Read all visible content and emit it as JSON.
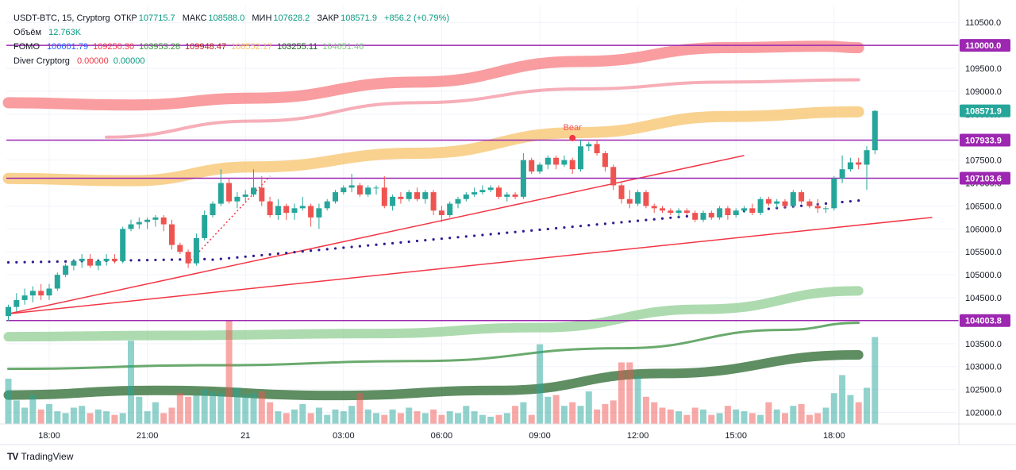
{
  "header": {
    "symbol": "USDT-BTC, 15, Cryptorg",
    "open_label": "ОТКР",
    "open_value": "107715.7",
    "high_label": "МАКС",
    "high_value": "108588.0",
    "low_label": "МИН",
    "low_value": "107628.2",
    "close_label": "ЗАКР",
    "close_value": "108571.9",
    "change": "+856.2 (+0.79%)"
  },
  "volume_legend": {
    "label": "Объём",
    "value": "12.763K"
  },
  "fomo_legend": {
    "label": "FOMO",
    "values": [
      {
        "text": "106601.79",
        "color": "#2962ff"
      },
      {
        "text": "109250.30",
        "color": "#f23645"
      },
      {
        "text": "103953.28",
        "color": "#388e3c"
      },
      {
        "text": "109948.47",
        "color": "#b71c1c"
      },
      {
        "text": "108552.17",
        "color": "#f7c36b"
      },
      {
        "text": "103255.11",
        "color": "#1b5e20"
      },
      {
        "text": "104651.46",
        "color": "#81c784"
      }
    ]
  },
  "diver_legend": {
    "label": "Diver Cryptorg",
    "values": [
      {
        "text": "0.00000",
        "color": "#f23645"
      },
      {
        "text": "0.00000",
        "color": "#089981"
      }
    ]
  },
  "footer": {
    "brand": "TradingView"
  },
  "colors": {
    "up": "#26a69a",
    "down": "#ef5350",
    "level": "#9c27b0",
    "ema_dots": "#311b92",
    "trend": "#f23645"
  },
  "chart_data": {
    "type": "candlestick",
    "price_axis_ticks": [
      102000,
      102500,
      103000,
      103500,
      104000,
      104500,
      105000,
      105500,
      106000,
      106500,
      107000,
      107500,
      108000,
      108500,
      109000,
      109500,
      110000,
      110500
    ],
    "price_labels": [
      "102000.0",
      "102500.0",
      "103000.0",
      "103500.0",
      "104000.0",
      "104500.0",
      "105000.0",
      "105500.0",
      "106000.0",
      "106500.0",
      "107000.0",
      "107500.0",
      "108000.0",
      "108500.0",
      "109000.0",
      "109500.0",
      "110000.0",
      "110500.0"
    ],
    "ylim": [
      101750,
      110850
    ],
    "time_labels": [
      {
        "label": "18:00",
        "index": 5
      },
      {
        "label": "21:00",
        "index": 17
      },
      {
        "label": "21",
        "index": 29
      },
      {
        "label": "03:00",
        "index": 41
      },
      {
        "label": "06:00",
        "index": 53
      },
      {
        "label": "09:00",
        "index": 65
      },
      {
        "label": "12:00",
        "index": 77
      },
      {
        "label": "15:00",
        "index": 89
      },
      {
        "label": "18:00",
        "index": 101
      }
    ],
    "levels": [
      {
        "price": 110000.0,
        "label": "110000.0"
      },
      {
        "price": 107933.9,
        "label": "107933.9"
      },
      {
        "price": 107103.6,
        "label": "107103.6"
      },
      {
        "price": 104003.8,
        "label": "104003.8"
      }
    ],
    "last_price": {
      "price": 108571.9,
      "label": "108571.9"
    },
    "annotation": {
      "text": "Bear",
      "index": 69,
      "price": 107980
    },
    "candles": [
      {
        "o": 104100,
        "h": 104350,
        "l": 104000,
        "c": 104300
      },
      {
        "o": 104300,
        "h": 104600,
        "l": 104200,
        "c": 104450
      },
      {
        "o": 104450,
        "h": 104700,
        "l": 104350,
        "c": 104550
      },
      {
        "o": 104550,
        "h": 104750,
        "l": 104400,
        "c": 104650
      },
      {
        "o": 104650,
        "h": 104800,
        "l": 104450,
        "c": 104550
      },
      {
        "o": 104550,
        "h": 104800,
        "l": 104450,
        "c": 104700
      },
      {
        "o": 104700,
        "h": 105050,
        "l": 104650,
        "c": 105000
      },
      {
        "o": 105000,
        "h": 105250,
        "l": 104950,
        "c": 105200
      },
      {
        "o": 105200,
        "h": 105350,
        "l": 105100,
        "c": 105300
      },
      {
        "o": 105300,
        "h": 105450,
        "l": 105150,
        "c": 105350
      },
      {
        "o": 105350,
        "h": 105450,
        "l": 105150,
        "c": 105200
      },
      {
        "o": 105200,
        "h": 105350,
        "l": 105100,
        "c": 105300
      },
      {
        "o": 105300,
        "h": 105450,
        "l": 105200,
        "c": 105350
      },
      {
        "o": 105350,
        "h": 105450,
        "l": 105250,
        "c": 105300
      },
      {
        "o": 105300,
        "h": 106050,
        "l": 105250,
        "c": 106000
      },
      {
        "o": 106000,
        "h": 106200,
        "l": 105950,
        "c": 106100
      },
      {
        "o": 106100,
        "h": 106250,
        "l": 106000,
        "c": 106150
      },
      {
        "o": 106150,
        "h": 106250,
        "l": 106000,
        "c": 106200
      },
      {
        "o": 106200,
        "h": 106300,
        "l": 106050,
        "c": 106250
      },
      {
        "o": 106250,
        "h": 106300,
        "l": 105950,
        "c": 106100
      },
      {
        "o": 106100,
        "h": 106200,
        "l": 105550,
        "c": 105650
      },
      {
        "o": 105650,
        "h": 105700,
        "l": 105450,
        "c": 105500
      },
      {
        "o": 105500,
        "h": 105550,
        "l": 105150,
        "c": 105250
      },
      {
        "o": 105250,
        "h": 105900,
        "l": 105200,
        "c": 105800
      },
      {
        "o": 105800,
        "h": 106400,
        "l": 105750,
        "c": 106300
      },
      {
        "o": 106300,
        "h": 106600,
        "l": 106250,
        "c": 106550
      },
      {
        "o": 106550,
        "h": 107300,
        "l": 106500,
        "c": 107000
      },
      {
        "o": 107000,
        "h": 107100,
        "l": 106550,
        "c": 106600
      },
      {
        "o": 106600,
        "h": 106800,
        "l": 106450,
        "c": 106700
      },
      {
        "o": 106700,
        "h": 106850,
        "l": 106600,
        "c": 106750
      },
      {
        "o": 106750,
        "h": 107300,
        "l": 106700,
        "c": 106900
      },
      {
        "o": 106900,
        "h": 107150,
        "l": 106500,
        "c": 106600
      },
      {
        "o": 106600,
        "h": 106700,
        "l": 106250,
        "c": 106300
      },
      {
        "o": 106300,
        "h": 106650,
        "l": 106200,
        "c": 106500
      },
      {
        "o": 106500,
        "h": 106550,
        "l": 106200,
        "c": 106350
      },
      {
        "o": 106350,
        "h": 106550,
        "l": 106200,
        "c": 106450
      },
      {
        "o": 106450,
        "h": 106700,
        "l": 106400,
        "c": 106500
      },
      {
        "o": 106500,
        "h": 106550,
        "l": 106050,
        "c": 106250
      },
      {
        "o": 106250,
        "h": 106550,
        "l": 106000,
        "c": 106450
      },
      {
        "o": 106450,
        "h": 106650,
        "l": 106400,
        "c": 106600
      },
      {
        "o": 106600,
        "h": 106850,
        "l": 106550,
        "c": 106800
      },
      {
        "o": 106800,
        "h": 106950,
        "l": 106750,
        "c": 106900
      },
      {
        "o": 106900,
        "h": 107200,
        "l": 106800,
        "c": 106950
      },
      {
        "o": 106950,
        "h": 107000,
        "l": 106700,
        "c": 106750
      },
      {
        "o": 106750,
        "h": 106950,
        "l": 106700,
        "c": 106900
      },
      {
        "o": 106900,
        "h": 106950,
        "l": 106750,
        "c": 106900
      },
      {
        "o": 106900,
        "h": 107150,
        "l": 106450,
        "c": 106500
      },
      {
        "o": 106500,
        "h": 106750,
        "l": 106400,
        "c": 106700
      },
      {
        "o": 106700,
        "h": 106800,
        "l": 106550,
        "c": 106650
      },
      {
        "o": 106650,
        "h": 106850,
        "l": 106600,
        "c": 106800
      },
      {
        "o": 106800,
        "h": 106900,
        "l": 106600,
        "c": 106650
      },
      {
        "o": 106650,
        "h": 106850,
        "l": 106550,
        "c": 106800
      },
      {
        "o": 106800,
        "h": 106850,
        "l": 106300,
        "c": 106400
      },
      {
        "o": 106400,
        "h": 106500,
        "l": 106150,
        "c": 106300
      },
      {
        "o": 106300,
        "h": 106600,
        "l": 106250,
        "c": 106550
      },
      {
        "o": 106550,
        "h": 106700,
        "l": 106450,
        "c": 106650
      },
      {
        "o": 106650,
        "h": 106800,
        "l": 106600,
        "c": 106750
      },
      {
        "o": 106750,
        "h": 106900,
        "l": 106700,
        "c": 106800
      },
      {
        "o": 106800,
        "h": 106950,
        "l": 106750,
        "c": 106850
      },
      {
        "o": 106850,
        "h": 106950,
        "l": 106800,
        "c": 106900
      },
      {
        "o": 106900,
        "h": 106950,
        "l": 106650,
        "c": 106700
      },
      {
        "o": 106700,
        "h": 106800,
        "l": 106600,
        "c": 106750
      },
      {
        "o": 106750,
        "h": 106800,
        "l": 106650,
        "c": 106700
      },
      {
        "o": 106700,
        "h": 107650,
        "l": 106650,
        "c": 107500
      },
      {
        "o": 107500,
        "h": 107550,
        "l": 107200,
        "c": 107250
      },
      {
        "o": 107250,
        "h": 107450,
        "l": 107200,
        "c": 107400
      },
      {
        "o": 107400,
        "h": 107600,
        "l": 107300,
        "c": 107550
      },
      {
        "o": 107550,
        "h": 107600,
        "l": 107300,
        "c": 107400
      },
      {
        "o": 107400,
        "h": 107600,
        "l": 107350,
        "c": 107500
      },
      {
        "o": 107500,
        "h": 107550,
        "l": 107200,
        "c": 107300
      },
      {
        "o": 107300,
        "h": 107950,
        "l": 107250,
        "c": 107800
      },
      {
        "o": 107800,
        "h": 107900,
        "l": 107700,
        "c": 107850
      },
      {
        "o": 107850,
        "h": 107950,
        "l": 107600,
        "c": 107650
      },
      {
        "o": 107650,
        "h": 107700,
        "l": 107250,
        "c": 107350
      },
      {
        "o": 107350,
        "h": 107400,
        "l": 106850,
        "c": 106950
      },
      {
        "o": 106950,
        "h": 107000,
        "l": 106550,
        "c": 106650
      },
      {
        "o": 106650,
        "h": 106850,
        "l": 106450,
        "c": 106550
      },
      {
        "o": 106550,
        "h": 106850,
        "l": 106500,
        "c": 106800
      },
      {
        "o": 106800,
        "h": 106850,
        "l": 106450,
        "c": 106500
      },
      {
        "o": 106500,
        "h": 106550,
        "l": 106350,
        "c": 106450
      },
      {
        "o": 106450,
        "h": 106500,
        "l": 106350,
        "c": 106400
      },
      {
        "o": 106400,
        "h": 106450,
        "l": 106300,
        "c": 106350
      },
      {
        "o": 106350,
        "h": 106450,
        "l": 106250,
        "c": 106400
      },
      {
        "o": 106400,
        "h": 106450,
        "l": 106300,
        "c": 106350
      },
      {
        "o": 106350,
        "h": 106400,
        "l": 106150,
        "c": 106200
      },
      {
        "o": 106200,
        "h": 106400,
        "l": 106150,
        "c": 106350
      },
      {
        "o": 106350,
        "h": 106400,
        "l": 106200,
        "c": 106250
      },
      {
        "o": 106250,
        "h": 106500,
        "l": 106200,
        "c": 106450
      },
      {
        "o": 106450,
        "h": 106500,
        "l": 106200,
        "c": 106300
      },
      {
        "o": 106300,
        "h": 106450,
        "l": 106250,
        "c": 106400
      },
      {
        "o": 106400,
        "h": 106500,
        "l": 106350,
        "c": 106450
      },
      {
        "o": 106450,
        "h": 106550,
        "l": 106300,
        "c": 106350
      },
      {
        "o": 106350,
        "h": 106700,
        "l": 106300,
        "c": 106650
      },
      {
        "o": 106650,
        "h": 106700,
        "l": 106500,
        "c": 106550
      },
      {
        "o": 106550,
        "h": 106650,
        "l": 106450,
        "c": 106600
      },
      {
        "o": 106600,
        "h": 106650,
        "l": 106450,
        "c": 106500
      },
      {
        "o": 106500,
        "h": 106850,
        "l": 106450,
        "c": 106800
      },
      {
        "o": 106800,
        "h": 106850,
        "l": 106550,
        "c": 106600
      },
      {
        "o": 106600,
        "h": 106650,
        "l": 106450,
        "c": 106500
      },
      {
        "o": 106500,
        "h": 106650,
        "l": 106350,
        "c": 106450
      },
      {
        "o": 106450,
        "h": 106500,
        "l": 106350,
        "c": 106450
      },
      {
        "o": 106450,
        "h": 107150,
        "l": 106400,
        "c": 107100
      },
      {
        "o": 107100,
        "h": 107600,
        "l": 107000,
        "c": 107300
      },
      {
        "o": 107300,
        "h": 107550,
        "l": 107250,
        "c": 107450
      },
      {
        "o": 107450,
        "h": 107550,
        "l": 107300,
        "c": 107400
      },
      {
        "o": 107400,
        "h": 107800,
        "l": 106850,
        "c": 107715
      },
      {
        "o": 107715,
        "h": 108588,
        "l": 107628,
        "c": 108572
      }
    ],
    "volumes": [
      2.5,
      1.3,
      0.9,
      1.6,
      0.8,
      1.1,
      0.7,
      0.6,
      0.9,
      1.0,
      0.6,
      0.8,
      0.7,
      0.5,
      0.6,
      4.6,
      1.5,
      0.7,
      1.2,
      0.6,
      0.9,
      1.7,
      1.5,
      1.6,
      1.9,
      1.8,
      1.7,
      5.7,
      2.0,
      1.6,
      1.7,
      1.8,
      1.2,
      0.7,
      0.6,
      0.8,
      1.1,
      0.6,
      0.9,
      0.5,
      0.8,
      0.7,
      1.0,
      1.7,
      0.8,
      0.6,
      0.5,
      0.8,
      0.6,
      0.9,
      0.7,
      0.6,
      0.8,
      0.5,
      0.7,
      0.6,
      1.0,
      0.7,
      0.5,
      0.4,
      0.5,
      0.6,
      1.0,
      1.2,
      0.5,
      4.4,
      1.5,
      1.6,
      1.0,
      1.2,
      1.0,
      1.8,
      0.8,
      1.1,
      1.3,
      3.4,
      3.4,
      2.6,
      1.5,
      1.2,
      0.9,
      0.8,
      0.7,
      0.5,
      0.9,
      0.8,
      0.5,
      0.6,
      1.0,
      0.8,
      0.7,
      0.6,
      0.5,
      1.2,
      0.8,
      0.6,
      1.0,
      1.1,
      0.5,
      0.6,
      0.9,
      1.7,
      2.7,
      1.6,
      1.2,
      2.0,
      4.8
    ],
    "volume_up_color": "rgba(38,166,154,0.5)",
    "volume_down_color": "rgba(239,83,80,0.5)"
  }
}
